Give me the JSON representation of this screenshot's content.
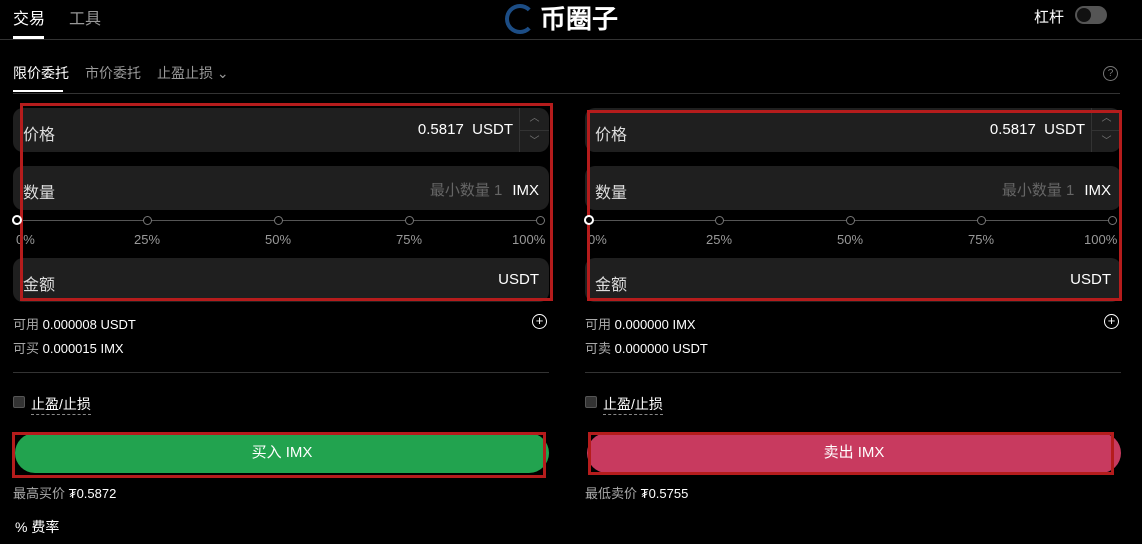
{
  "top_tabs": [
    "交易",
    "工具"
  ],
  "leverage_label": "杠杆",
  "order_types": [
    "限价委托",
    "市价委托",
    "止盈止损"
  ],
  "buy": {
    "price_label": "价格",
    "price_value": "0.5817",
    "price_unit": "USDT",
    "qty_label": "数量",
    "qty_placeholder": "最小数量 1",
    "qty_unit": "IMX",
    "slider_marks": [
      "0%",
      "25%",
      "50%",
      "75%",
      "100%"
    ],
    "slider_value_percent": 0,
    "amount_label": "金额",
    "amount_unit": "USDT",
    "avail_label": "可用",
    "avail_value": "0.000008 USDT",
    "can_label": "可买",
    "can_value": "0.000015 IMX",
    "tpsl_label": "止盈/止损",
    "button_label": "买入 IMX",
    "button_color": "#22a34f",
    "best_label": "最高买价",
    "best_value": "₮0.5872"
  },
  "sell": {
    "price_label": "价格",
    "price_value": "0.5817",
    "price_unit": "USDT",
    "qty_label": "数量",
    "qty_placeholder": "最小数量 1",
    "qty_unit": "IMX",
    "slider_marks": [
      "0%",
      "25%",
      "50%",
      "75%",
      "100%"
    ],
    "slider_value_percent": 0,
    "amount_label": "金额",
    "amount_unit": "USDT",
    "avail_label": "可用",
    "avail_value": "0.000000 IMX",
    "can_label": "可卖",
    "can_value": "0.000000 USDT",
    "tpsl_label": "止盈/止损",
    "button_label": "卖出 IMX",
    "button_color": "#c83a5f",
    "best_label": "最低卖价",
    "best_value": "₮0.5755"
  },
  "fee_label": "费率",
  "watermark": "币圈子"
}
